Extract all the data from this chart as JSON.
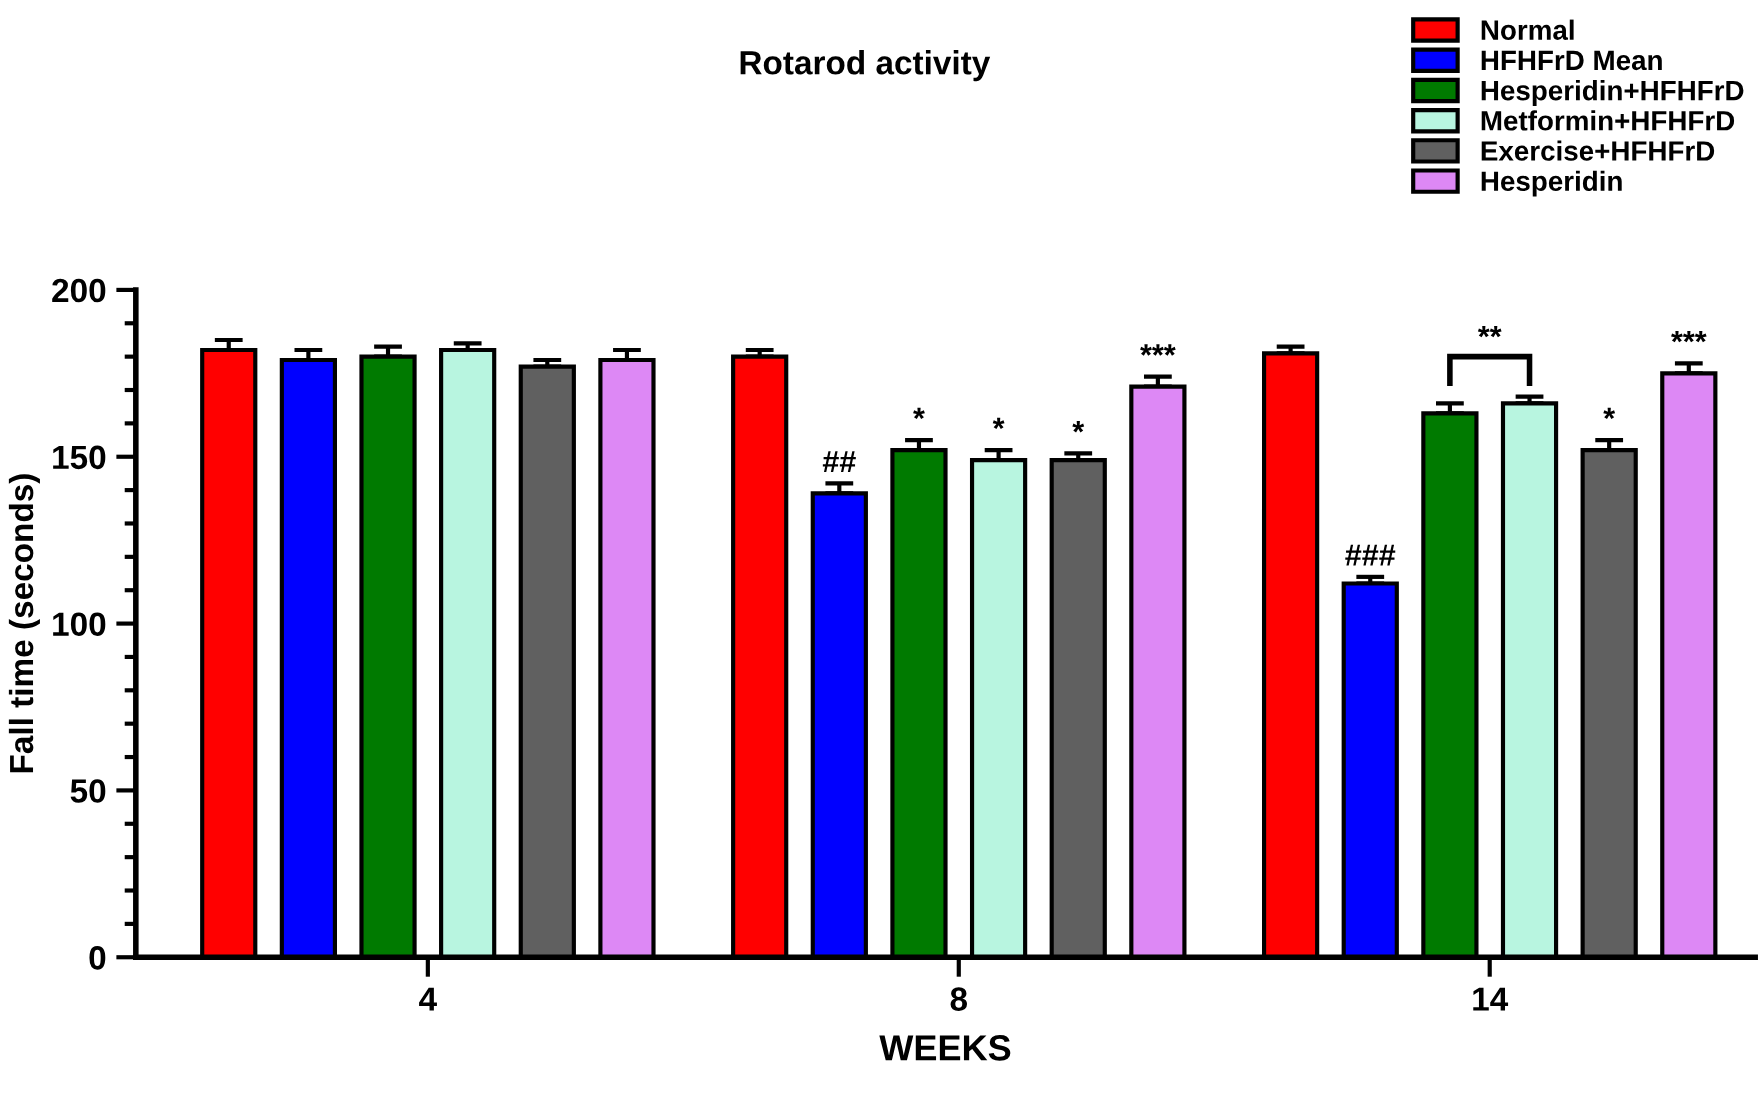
{
  "chart_data": {
    "type": "bar",
    "title": "Rotarod activity",
    "xlabel": "WEEKS",
    "ylabel": "Fall time (seconds)",
    "categories": [
      "4",
      "8",
      "14"
    ],
    "series": [
      {
        "name": "Normal",
        "color": "#ff0000",
        "values": [
          182,
          180,
          181
        ],
        "errors": [
          3,
          2,
          2
        ],
        "value_labels": [
          null,
          null,
          null
        ]
      },
      {
        "name": "HFHFrD Mean",
        "color": "#0000ff",
        "values": [
          179,
          139,
          112
        ],
        "errors": [
          3,
          3,
          2
        ],
        "value_labels": [
          null,
          "##",
          "###"
        ]
      },
      {
        "name": "Hesperidin+HFHFrD",
        "color": "#007a00",
        "values": [
          180,
          152,
          163
        ],
        "errors": [
          3,
          3,
          3
        ],
        "value_labels": [
          null,
          "*",
          null
        ]
      },
      {
        "name": "Metformin+HFHFrD",
        "color": "#b8f5e0",
        "values": [
          182,
          149,
          166
        ],
        "errors": [
          2,
          3,
          2
        ],
        "value_labels": [
          null,
          "*",
          null
        ]
      },
      {
        "name": "Exercise+HFHFrD",
        "color": "#606060",
        "values": [
          177,
          149,
          152
        ],
        "errors": [
          2,
          2,
          3
        ],
        "value_labels": [
          null,
          "*",
          "*"
        ]
      },
      {
        "name": "Hesperidin",
        "color": "#dd88f5",
        "values": [
          179,
          171,
          175
        ],
        "errors": [
          3,
          3,
          3
        ],
        "value_labels": [
          null,
          "***",
          "***"
        ]
      }
    ],
    "annotations": [
      "**"
    ],
    "ylim": [
      0,
      200
    ],
    "yticks": [
      0,
      50,
      100,
      150,
      200
    ],
    "grid": false,
    "legend": "top right"
  }
}
